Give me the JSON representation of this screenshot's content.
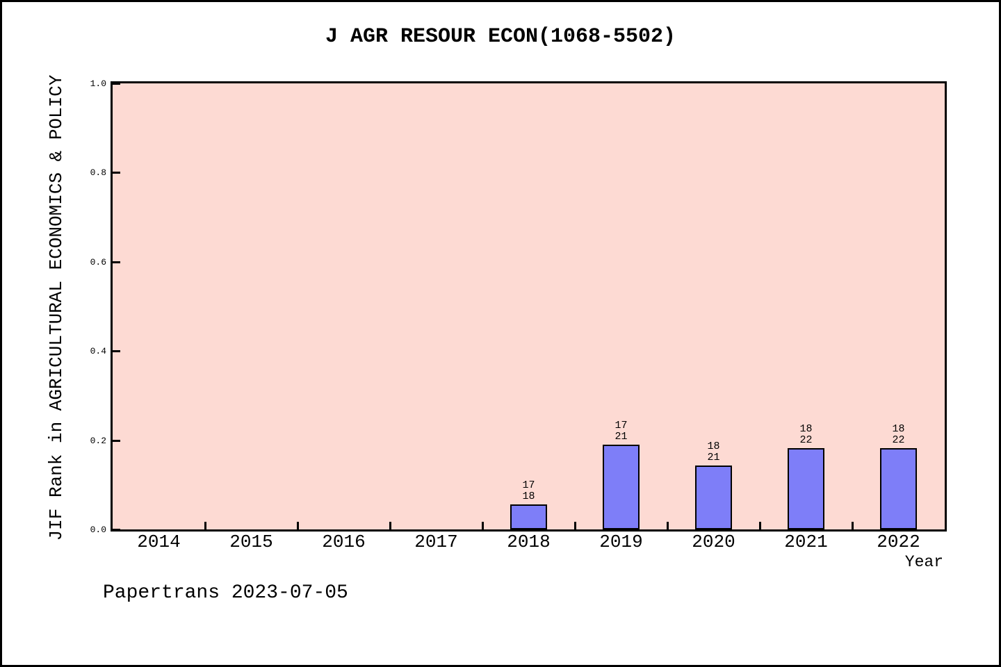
{
  "figure": {
    "footer": "Papertrans 2023-07-05"
  },
  "chart_data": {
    "type": "bar",
    "title": "J AGR RESOUR ECON(1068-5502)",
    "xlabel": "Year",
    "ylabel": "JIF Rank in AGRICULTURAL ECONOMICS & POLICY",
    "ylim": [
      0.0,
      1.0
    ],
    "ytick_labels": [
      "0.0",
      "0.2",
      "0.4",
      "0.6",
      "0.8",
      "1.0"
    ],
    "categories": [
      "2014",
      "2015",
      "2016",
      "2017",
      "2018",
      "2019",
      "2020",
      "2021",
      "2022"
    ],
    "values": [
      null,
      null,
      null,
      null,
      0.056,
      0.19,
      0.143,
      0.182,
      0.182
    ],
    "bar_labels": [
      null,
      null,
      null,
      null,
      [
        "17",
        "18"
      ],
      [
        "17",
        "21"
      ],
      [
        "18",
        "21"
      ],
      [
        "18",
        "22"
      ],
      [
        "18",
        "22"
      ]
    ],
    "grid": false,
    "legend": null,
    "colors": {
      "plot_bg": "#FDDAD3",
      "bar_fill": "#7E7EF8",
      "bar_border": "#000000",
      "text": "#000000"
    }
  }
}
